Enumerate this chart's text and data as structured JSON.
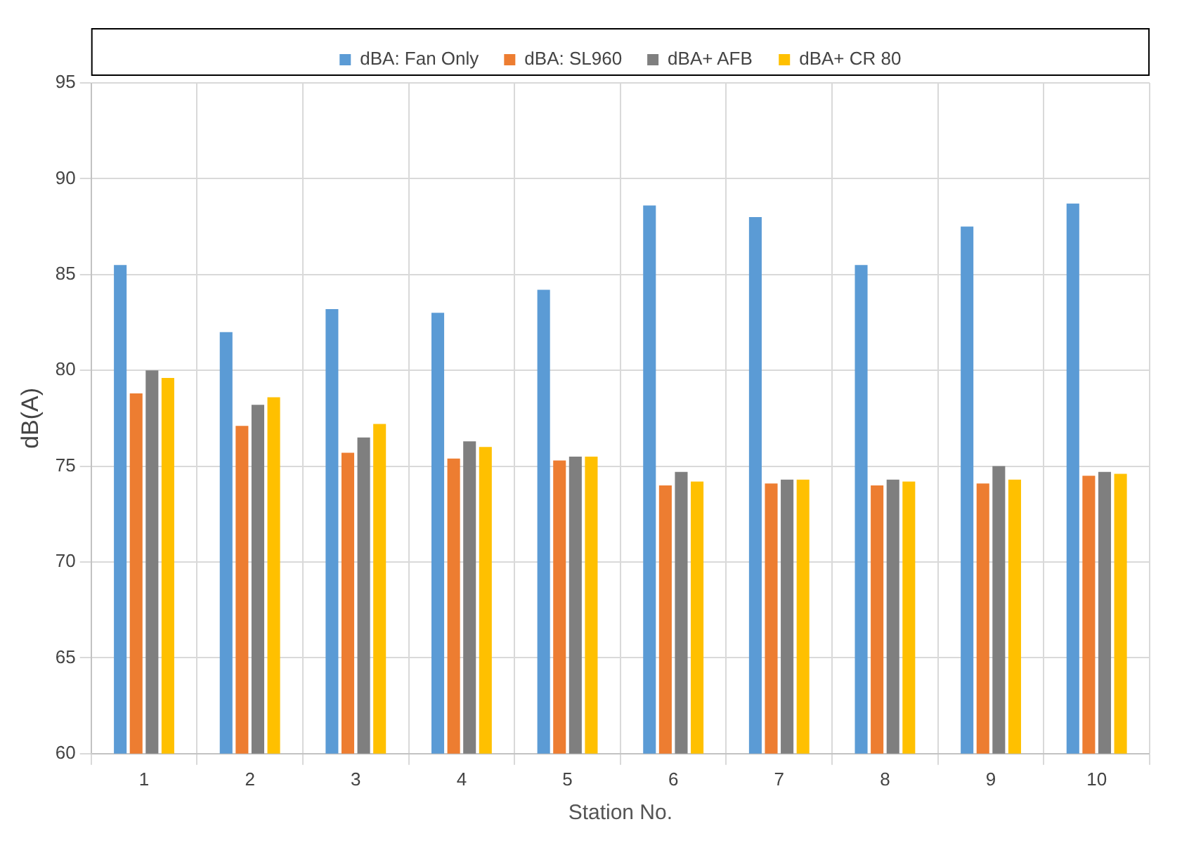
{
  "chart_data": {
    "type": "bar",
    "xlabel": "Station No.",
    "ylabel": "dB(A)",
    "categories": [
      "1",
      "2",
      "3",
      "4",
      "5",
      "6",
      "7",
      "8",
      "9",
      "10"
    ],
    "series": [
      {
        "name": "dBA: Fan Only",
        "color": "#5b9bd5",
        "values": [
          85.5,
          82.0,
          83.2,
          83.0,
          84.2,
          88.6,
          88.0,
          85.5,
          87.5,
          88.7
        ]
      },
      {
        "name": "dBA: SL960",
        "color": "#ed7d31",
        "values": [
          78.8,
          77.1,
          75.7,
          75.4,
          75.3,
          74.0,
          74.1,
          74.0,
          74.1,
          74.5
        ]
      },
      {
        "name": "dBA+ AFB",
        "color": "#7f7f7f",
        "values": [
          80.0,
          78.2,
          76.5,
          76.3,
          75.5,
          74.7,
          74.3,
          74.3,
          75.0,
          74.7
        ]
      },
      {
        "name": "dBA+ CR 80",
        "color": "#ffc000",
        "values": [
          79.6,
          78.6,
          77.2,
          76.0,
          75.5,
          74.2,
          74.3,
          74.2,
          74.3,
          74.6
        ]
      }
    ],
    "ylim": [
      60,
      95
    ],
    "yticks": [
      60,
      65,
      70,
      75,
      80,
      85,
      90,
      95
    ],
    "grid": true,
    "legend": "top"
  }
}
